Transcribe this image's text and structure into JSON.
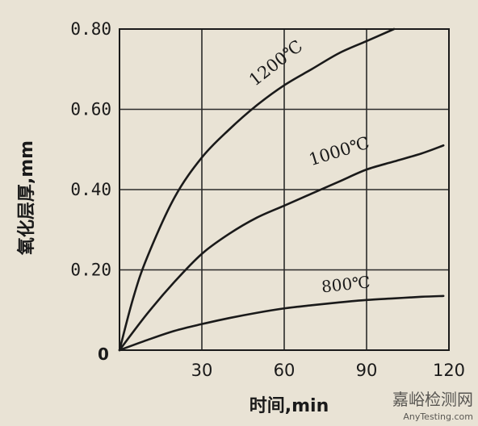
{
  "chart_data": {
    "type": "line",
    "xlabel": "时间,min",
    "ylabel": "氧化层厚,mm",
    "x_ticks": [
      "30",
      "60",
      "90",
      "120"
    ],
    "y_ticks": [
      "0",
      "0.20",
      "0.40",
      "0.60",
      "0.80"
    ],
    "origin_label": "0",
    "xlim": [
      0,
      120
    ],
    "ylim": [
      0,
      0.8
    ],
    "grid": true,
    "series": [
      {
        "name": "1200℃",
        "x": [
          0,
          5,
          10,
          20,
          30,
          40,
          50,
          60,
          70,
          80,
          90,
          100
        ],
        "y": [
          0,
          0.13,
          0.23,
          0.38,
          0.48,
          0.55,
          0.61,
          0.66,
          0.7,
          0.74,
          0.77,
          0.8
        ]
      },
      {
        "name": "1000℃",
        "x": [
          0,
          10,
          20,
          30,
          40,
          50,
          60,
          70,
          80,
          90,
          100,
          110,
          118
        ],
        "y": [
          0,
          0.09,
          0.17,
          0.24,
          0.29,
          0.33,
          0.36,
          0.39,
          0.42,
          0.45,
          0.47,
          0.49,
          0.51
        ]
      },
      {
        "name": "800℃",
        "x": [
          0,
          10,
          20,
          30,
          40,
          50,
          60,
          70,
          80,
          90,
          100,
          110,
          118
        ],
        "y": [
          0,
          0.025,
          0.048,
          0.065,
          0.08,
          0.093,
          0.104,
          0.112,
          0.119,
          0.125,
          0.129,
          0.133,
          0.135
        ]
      }
    ]
  },
  "watermark": {
    "text": "嘉峪检测网",
    "subtext": "AnyTesting.com",
    "color": "#cfc7b6"
  },
  "colors": {
    "ink": "#1a1a1a",
    "paper": "#e9e3d5",
    "grid": "#2a2a2a"
  }
}
